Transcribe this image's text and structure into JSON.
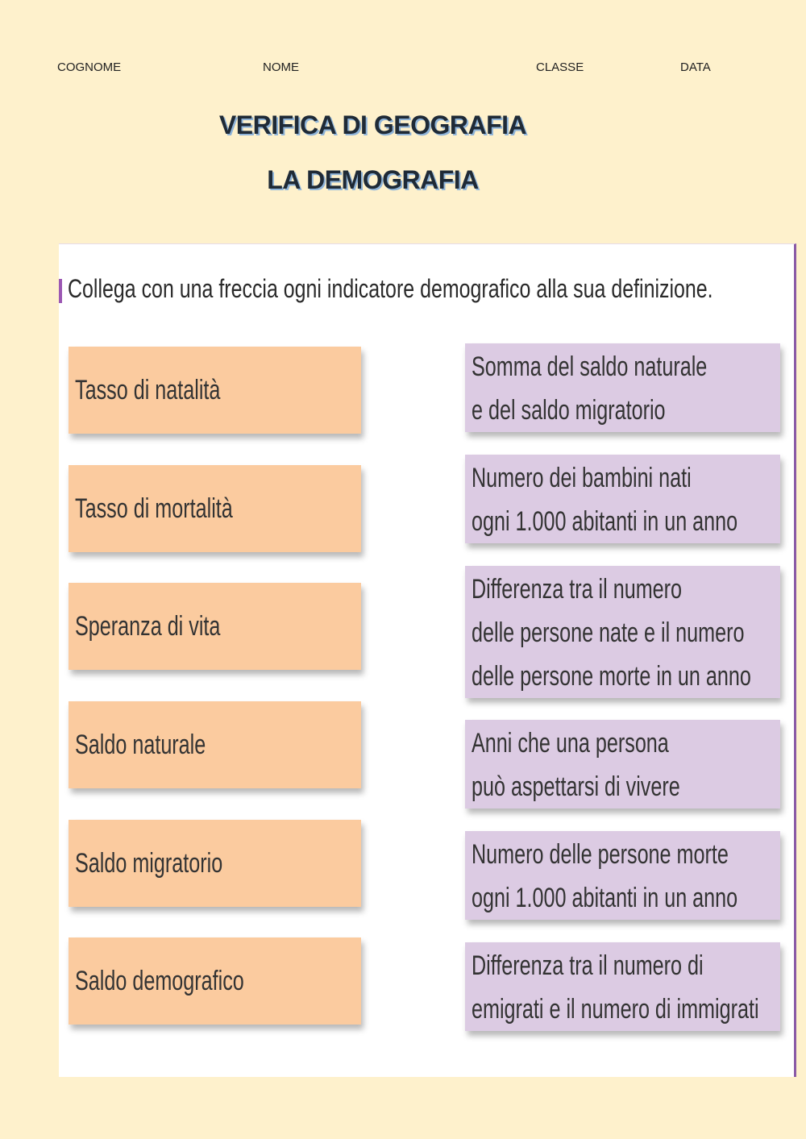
{
  "header": {
    "cognome": "COGNOME",
    "nome": "NOME",
    "classe": "CLASSE",
    "data": "DATA"
  },
  "title": {
    "line1": "VERIFICA DI GEOGRAFIA",
    "line2": "LA DEMOGRAFIA"
  },
  "exercise": {
    "instruction": "Collega con una freccia ogni indicatore demografico alla sua definizione.",
    "indicators": [
      "Tasso di natalità",
      "Tasso di mortalità",
      "Speranza di vita",
      "Saldo naturale",
      "Saldo migratorio",
      "Saldo demografico"
    ],
    "definitions": [
      [
        "Somma del saldo naturale",
        "e del saldo migratorio"
      ],
      [
        "Numero dei bambini nati",
        "ogni 1.000 abitanti in un anno"
      ],
      [
        "Differenza tra il numero",
        "delle persone nate e il numero",
        "delle persone morte in un anno"
      ],
      [
        "Anni che una persona",
        "può aspettarsi di vivere"
      ],
      [
        "Numero delle persone morte",
        "ogni 1.000 abitanti in un anno"
      ],
      [
        "Differenza tra il numero di",
        "emigrati e il numero di immigrati"
      ]
    ]
  },
  "colors": {
    "background": "#fef1cc",
    "indicator_box": "#fbcb9f",
    "definition_box": "#dccbe3",
    "accent": "#8a5aa6"
  }
}
